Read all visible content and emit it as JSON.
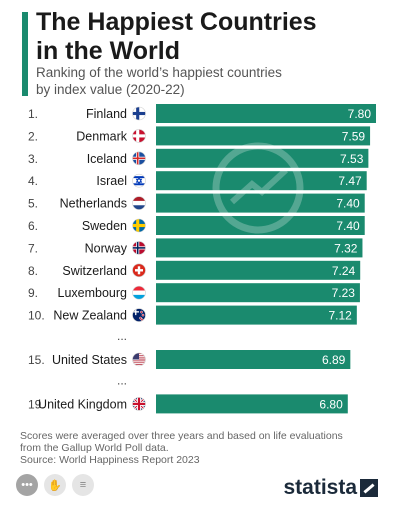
{
  "header": {
    "title_line1": "The Happiest Countries",
    "title_line2": "in the World",
    "subtitle_line1": "Ranking of the world’s happiest countries",
    "subtitle_line2": "by index value (2020-22)"
  },
  "colors": {
    "accent": "#1a8a6e",
    "bar": "#1a8a6e",
    "value_text": "#ffffff"
  },
  "chart_data": {
    "type": "bar",
    "orientation": "horizontal",
    "title": "The Happiest Countries in the World",
    "subtitle": "Ranking of the world’s happiest countries by index value (2020-22)",
    "xlim": [
      0,
      7.8
    ],
    "rows": [
      {
        "rank": "1.",
        "country": "Finland",
        "value": 7.8,
        "label": "7.80",
        "flag": "finland-flag-icon"
      },
      {
        "rank": "2.",
        "country": "Denmark",
        "value": 7.59,
        "label": "7.59",
        "flag": "denmark-flag-icon"
      },
      {
        "rank": "3.",
        "country": "Iceland",
        "value": 7.53,
        "label": "7.53",
        "flag": "iceland-flag-icon"
      },
      {
        "rank": "4.",
        "country": "Israel",
        "value": 7.47,
        "label": "7.47",
        "flag": "israel-flag-icon"
      },
      {
        "rank": "5.",
        "country": "Netherlands",
        "value": 7.4,
        "label": "7.40",
        "flag": "netherlands-flag-icon"
      },
      {
        "rank": "6.",
        "country": "Sweden",
        "value": 7.4,
        "label": "7.40",
        "flag": "sweden-flag-icon"
      },
      {
        "rank": "7.",
        "country": "Norway",
        "value": 7.32,
        "label": "7.32",
        "flag": "norway-flag-icon"
      },
      {
        "rank": "8.",
        "country": "Switzerland",
        "value": 7.24,
        "label": "7.24",
        "flag": "switzerland-flag-icon"
      },
      {
        "rank": "9.",
        "country": "Luxembourg",
        "value": 7.23,
        "label": "7.23",
        "flag": "luxembourg-flag-icon"
      },
      {
        "rank": "10.",
        "country": "New Zealand",
        "value": 7.12,
        "label": "7.12",
        "flag": "new-zealand-flag-icon"
      },
      {
        "ellipsis": "..."
      },
      {
        "rank": "15.",
        "country": "United States",
        "value": 6.89,
        "label": "6.89",
        "flag": "united-states-flag-icon"
      },
      {
        "ellipsis": "..."
      },
      {
        "rank": "19.",
        "country": "United Kingdom",
        "value": 6.8,
        "label": "6.80",
        "flag": "united-kingdom-flag-icon"
      }
    ]
  },
  "footer": {
    "note_line1": "Scores were averaged over three years and based on life evaluations",
    "note_line2": "from the Gallup World Poll data.",
    "source": "Source: World Happiness Report 2023",
    "brand": "statista"
  }
}
